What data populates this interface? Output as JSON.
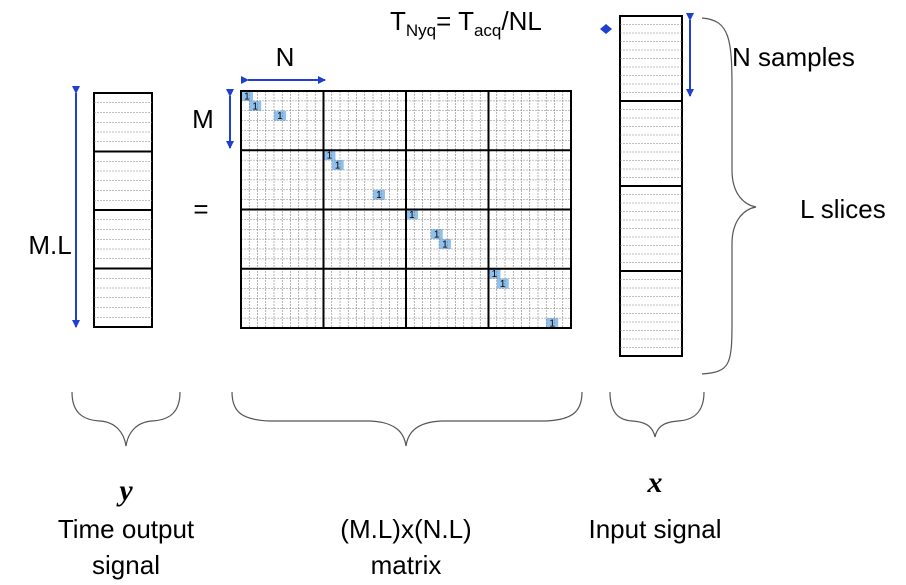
{
  "colors": {
    "arrow": "#1f3fd0",
    "grid_major": "#000000",
    "grid_minor": "#808080",
    "highlight": "#8fc0ee"
  },
  "labels": {
    "nyquist_prefix": "T",
    "nyquist_sub1": "Nyq",
    "nyquist_mid": "= T",
    "nyquist_sub2": "acq",
    "nyquist_suffix": "/NL",
    "n_top": "N",
    "m_left": "M",
    "ml_left": "M.L",
    "equals": "=",
    "n_samples": "N samples",
    "l_slices": "L slices",
    "y_symbol": "y",
    "y_caption_line1": "Time output",
    "y_caption_line2": "signal",
    "matrix_caption_line1": "(M.L)x(N.L)",
    "matrix_caption_line2": "matrix",
    "x_symbol": "x",
    "x_caption": "Input signal",
    "one": "1"
  },
  "matrix": {
    "block_rows": 4,
    "block_cols": 4,
    "rows_per_block": 6,
    "cols_per_block": 10,
    "ones": [
      [
        0,
        0
      ],
      [
        1,
        1
      ],
      [
        2,
        4
      ],
      [
        6,
        10
      ],
      [
        7,
        11
      ],
      [
        10,
        16
      ],
      [
        12,
        20
      ],
      [
        14,
        23
      ],
      [
        15,
        24
      ],
      [
        18,
        30
      ],
      [
        19,
        31
      ],
      [
        23,
        37
      ]
    ]
  },
  "y_vector": {
    "slices": 4,
    "lines_per_slice": 6
  },
  "x_vector": {
    "slices": 4,
    "lines_per_slice": 10
  }
}
